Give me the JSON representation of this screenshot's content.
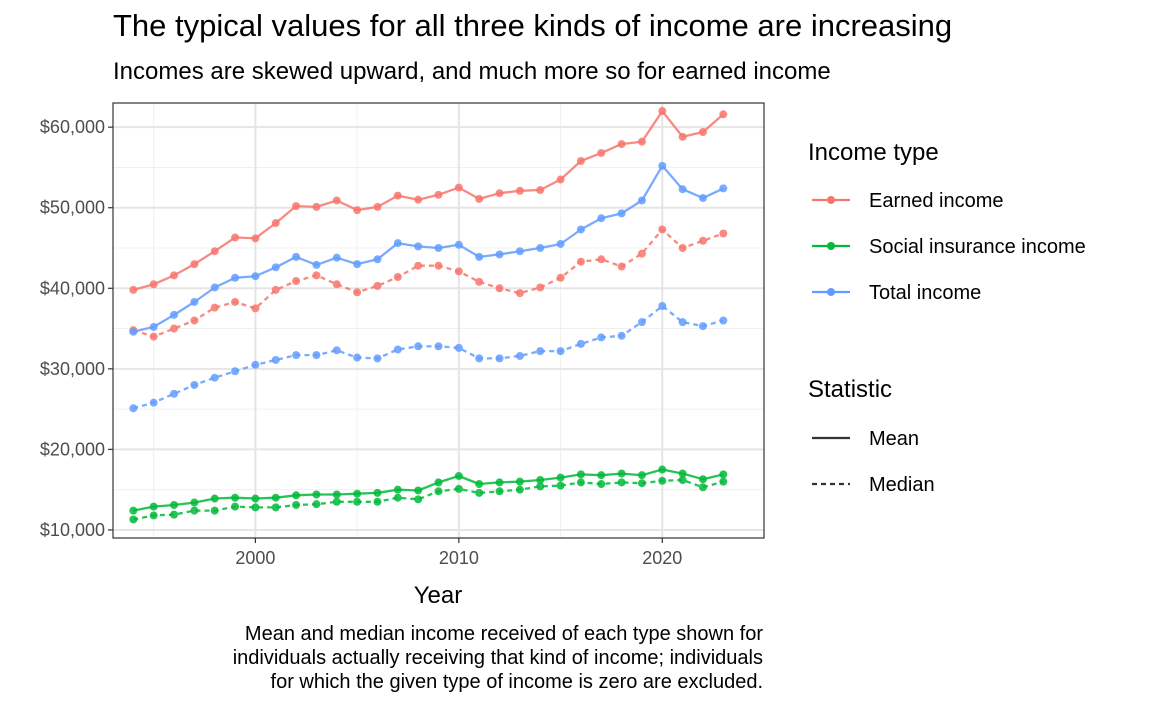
{
  "chart_data": {
    "type": "line",
    "title": "The typical values for all three kinds of income are increasing",
    "subtitle": "Incomes are skewed upward, and much more so for earned income",
    "xlabel": "Year",
    "ylabel": "",
    "caption_lines": [
      "Mean and median income received of each type shown for",
      "individuals actually receiving that kind of income; individuals",
      "for which the given type of income is zero are excluded."
    ],
    "xlim": [
      1993,
      2025
    ],
    "ylim": [
      9000,
      63000
    ],
    "x_ticks": [
      2000,
      2010,
      2020
    ],
    "x_tick_labels": [
      "2000",
      "2010",
      "2020"
    ],
    "y_ticks": [
      10000,
      20000,
      30000,
      40000,
      50000,
      60000
    ],
    "y_tick_labels": [
      "$10,000",
      "$20,000",
      "$30,000",
      "$40,000",
      "$50,000",
      "$60,000"
    ],
    "grid": true,
    "legend_position": "right",
    "x": [
      1994,
      1995,
      1996,
      1997,
      1998,
      1999,
      2000,
      2001,
      2002,
      2003,
      2004,
      2005,
      2006,
      2007,
      2008,
      2009,
      2010,
      2011,
      2012,
      2013,
      2014,
      2015,
      2016,
      2017,
      2018,
      2019,
      2020,
      2021,
      2022,
      2023
    ],
    "legend_income": {
      "title": "Income type",
      "entries": [
        {
          "label": "Earned income",
          "color": "#F8766D"
        },
        {
          "label": "Social insurance income",
          "color": "#00BA38"
        },
        {
          "label": "Total income",
          "color": "#619CFF"
        }
      ]
    },
    "legend_statistic": {
      "title": "Statistic",
      "entries": [
        {
          "label": "Mean",
          "dash": "solid"
        },
        {
          "label": "Median",
          "dash": "dashed"
        }
      ]
    },
    "series": [
      {
        "income_type": "Earned income",
        "statistic": "Mean",
        "color": "#F8766D",
        "dash": "solid",
        "values": [
          39800,
          40500,
          41600,
          43000,
          44600,
          46300,
          46200,
          48100,
          50200,
          50100,
          50900,
          49700,
          50100,
          51500,
          51000,
          51600,
          52500,
          51100,
          51800,
          52100,
          52200,
          53500,
          55800,
          56800,
          57900,
          58200,
          62000,
          58800,
          59400,
          61600
        ]
      },
      {
        "income_type": "Earned income",
        "statistic": "Median",
        "color": "#F8766D",
        "dash": "dashed",
        "values": [
          34800,
          34000,
          35000,
          36000,
          37600,
          38300,
          37500,
          39800,
          40900,
          41600,
          40500,
          39500,
          40300,
          41400,
          42800,
          42800,
          42100,
          40800,
          40000,
          39400,
          40100,
          41300,
          43300,
          43600,
          42700,
          44300,
          47300,
          45000,
          45900,
          46800
        ]
      },
      {
        "income_type": "Total income",
        "statistic": "Mean",
        "color": "#619CFF",
        "dash": "solid",
        "values": [
          34600,
          35200,
          36700,
          38300,
          40100,
          41300,
          41500,
          42600,
          43900,
          42900,
          43800,
          43000,
          43600,
          45600,
          45200,
          45000,
          45400,
          43900,
          44200,
          44600,
          45000,
          45500,
          47300,
          48700,
          49300,
          50900,
          55200,
          52300,
          51200,
          52400
        ]
      },
      {
        "income_type": "Total income",
        "statistic": "Median",
        "color": "#619CFF",
        "dash": "dashed",
        "values": [
          25100,
          25800,
          26900,
          28000,
          28900,
          29700,
          30500,
          31100,
          31700,
          31700,
          32300,
          31400,
          31300,
          32400,
          32800,
          32800,
          32600,
          31300,
          31300,
          31600,
          32200,
          32200,
          33100,
          33900,
          34100,
          35800,
          37800,
          35800,
          35300,
          36000
        ]
      },
      {
        "income_type": "Social insurance income",
        "statistic": "Mean",
        "color": "#00BA38",
        "dash": "solid",
        "values": [
          12400,
          12900,
          13100,
          13400,
          13900,
          14000,
          13900,
          14000,
          14300,
          14400,
          14400,
          14500,
          14600,
          15000,
          14900,
          15900,
          16700,
          15700,
          15900,
          16000,
          16200,
          16500,
          16900,
          16800,
          17000,
          16800,
          17500,
          17000,
          16300,
          16900
        ]
      },
      {
        "income_type": "Social insurance income",
        "statistic": "Median",
        "color": "#00BA38",
        "dash": "dashed",
        "values": [
          11300,
          11800,
          11900,
          12400,
          12400,
          12900,
          12800,
          12800,
          13100,
          13200,
          13500,
          13500,
          13500,
          14000,
          13800,
          14800,
          15100,
          14600,
          14800,
          15000,
          15400,
          15500,
          15900,
          15700,
          15900,
          15800,
          16100,
          16200,
          15300,
          16000
        ]
      }
    ]
  }
}
